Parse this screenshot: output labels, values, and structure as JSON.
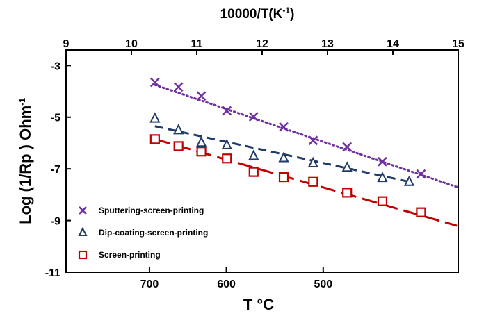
{
  "chart_data": {
    "type": "scatter",
    "title": "",
    "top_axis": {
      "label": "10000/T(K",
      "label_sup": "-1",
      "label_end": ")",
      "range": [
        9,
        15
      ],
      "ticks": [
        9,
        10,
        11,
        12,
        13,
        14,
        15
      ],
      "tick_labels": [
        "9",
        "10",
        "11",
        "12",
        "13",
        "14",
        "15"
      ]
    },
    "bottom_axis": {
      "label": "T °C",
      "ticks": [
        700,
        600,
        500
      ],
      "tick_labels": [
        "700",
        "600",
        "500"
      ]
    },
    "y_axis": {
      "label": "Log (1/Rp ) Ohm",
      "label_sup": "-1",
      "range": [
        -11,
        -2.4
      ],
      "ticks": [
        -3,
        -5,
        -7,
        -9,
        -11
      ],
      "tick_labels": [
        "-3",
        "-5",
        "-7",
        "-9",
        "-11"
      ]
    },
    "grid": false,
    "legend_position": "bottom-left",
    "series": [
      {
        "name": "Sputtering-screen-printing",
        "marker": "x",
        "color": "#7030a0",
        "line_style": "dotted",
        "x": [
          10.36,
          10.72,
          11.07,
          11.46,
          11.87,
          12.33,
          12.78,
          13.3,
          13.84,
          14.43
        ],
        "y": [
          -3.65,
          -3.83,
          -4.18,
          -4.75,
          -4.98,
          -5.38,
          -5.9,
          -6.15,
          -6.72,
          -7.2
        ],
        "fit": {
          "x": [
            10.36,
            14.98
          ],
          "y": [
            -3.75,
            -7.7
          ]
        }
      },
      {
        "name": "Dip-coating-screen-printing",
        "marker": "triangle",
        "color": "#1f3a6b",
        "line_style": "dashed",
        "x": [
          10.36,
          10.72,
          11.07,
          11.46,
          11.87,
          12.33,
          12.78,
          13.3,
          13.84,
          14.25
        ],
        "y": [
          -5.05,
          -5.5,
          -5.98,
          -6.08,
          -6.5,
          -6.58,
          -6.78,
          -6.95,
          -7.35,
          -7.5
        ],
        "fit": {
          "x": [
            10.36,
            14.25
          ],
          "y": [
            -5.35,
            -7.5
          ]
        }
      },
      {
        "name": "Screen-printing",
        "marker": "square",
        "color": "#c00000",
        "line_style": "long-dashed",
        "x": [
          10.36,
          10.72,
          11.07,
          11.46,
          11.87,
          12.33,
          12.78,
          13.3,
          13.84,
          14.43
        ],
        "y": [
          -5.85,
          -6.12,
          -6.33,
          -6.6,
          -7.12,
          -7.32,
          -7.5,
          -7.92,
          -8.25,
          -8.68
        ],
        "fit": {
          "x": [
            10.36,
            14.98
          ],
          "y": [
            -5.85,
            -9.2
          ]
        }
      }
    ]
  }
}
